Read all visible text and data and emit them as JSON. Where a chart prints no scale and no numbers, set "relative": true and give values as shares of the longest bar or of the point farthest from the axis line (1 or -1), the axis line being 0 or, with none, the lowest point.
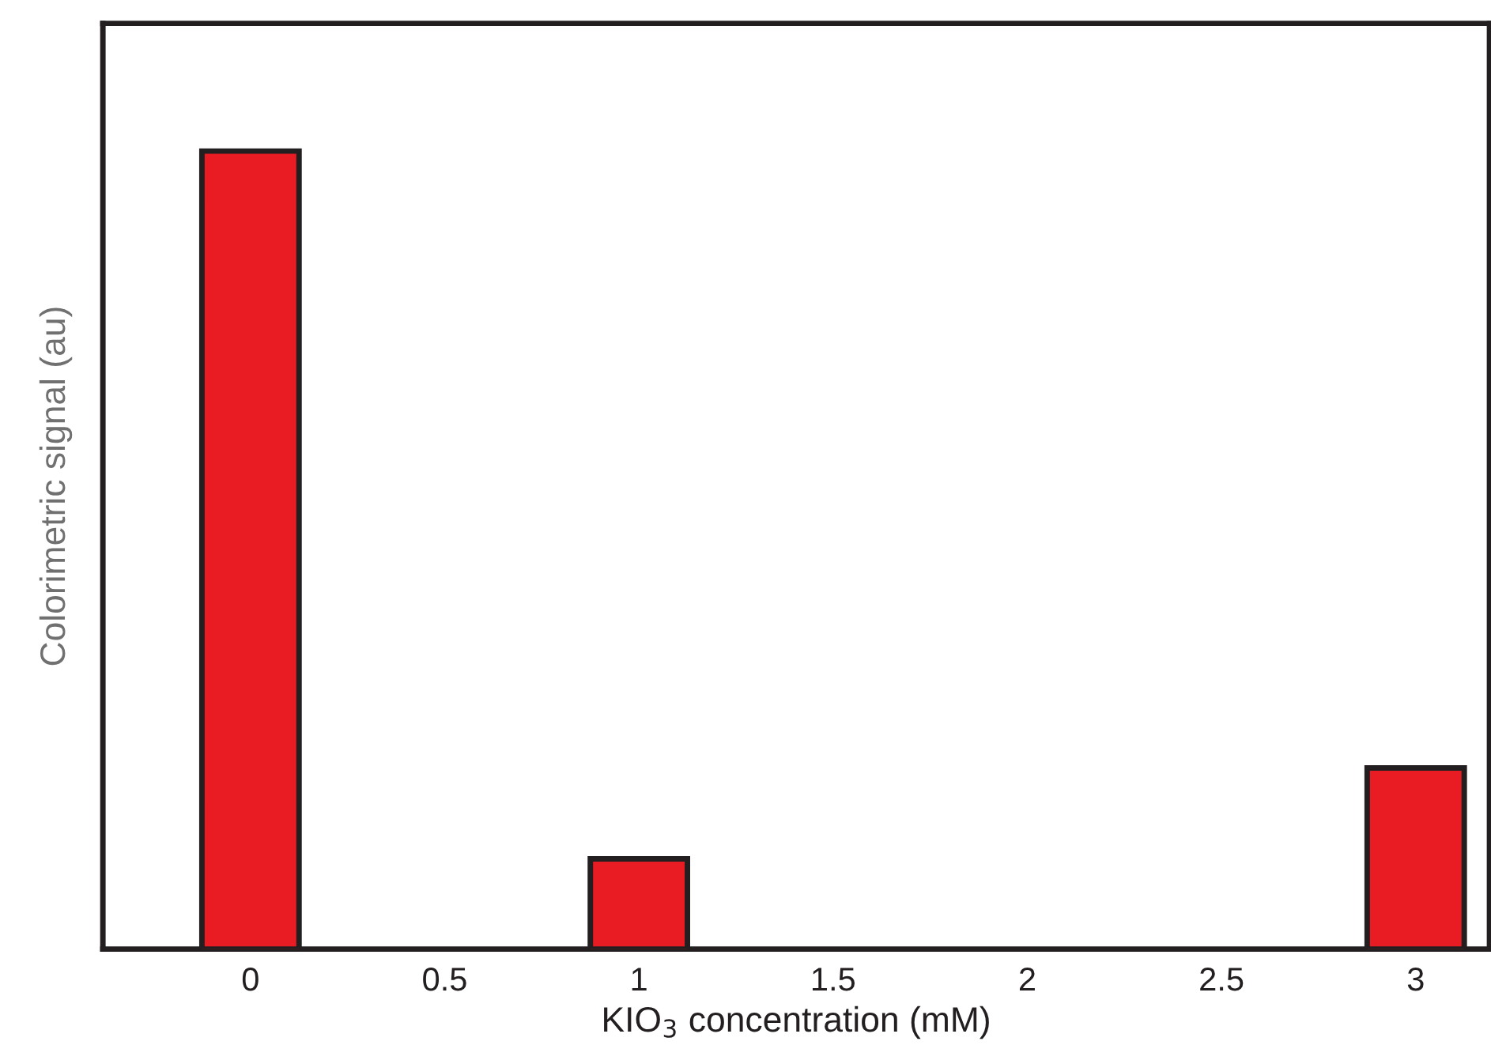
{
  "chart_data": {
    "type": "bar",
    "xlabel": "KIO$_{3}$ concentration (mM)",
    "ylabel": "Colorimetric signal (au)",
    "relative": true,
    "x": [
      0,
      1,
      3
    ],
    "values": [
      1,
      0.113,
      0.227
    ],
    "color": "#e91c24",
    "xlim": [
      -0.38,
      3.19
    ],
    "xticks": [
      0,
      0.5,
      1,
      1.5,
      2,
      2.5,
      3
    ],
    "grid": false
  }
}
